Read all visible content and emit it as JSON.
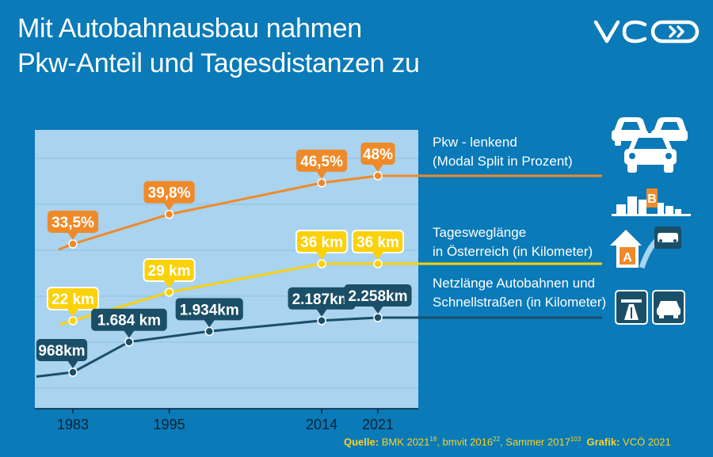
{
  "title": {
    "line1": "Mit Autobahnausbau nahmen",
    "line2": "Pkw-Anteil und Tagesdistanzen zu"
  },
  "logo_text": "VCÖ",
  "colors": {
    "background": "#0a7ab8",
    "plot_bg": "#a9d3ef",
    "pkw": "#ef8a2a",
    "tages": "#fbd10a",
    "netz": "#1b4f68"
  },
  "icons": [
    "cars-icon",
    "city-skyline-icon",
    "route-direction-icon",
    "motorway-sign-icon",
    "car-sign-icon"
  ],
  "chart_data": {
    "type": "line",
    "x_ticks": [
      "1983",
      "1995",
      "2014",
      "2021"
    ],
    "series": [
      {
        "name": "Pkw - lenkend (Modal Split in Prozent)",
        "label_line1": "Pkw - lenkend",
        "label_line2": "(Modal Split in Prozent)",
        "color": "#ef8a2a",
        "points": [
          {
            "x": 1983,
            "y": 33.5,
            "label": "33,5%"
          },
          {
            "x": 1995,
            "y": 39.8,
            "label": "39,8%"
          },
          {
            "x": 2014,
            "y": 46.5,
            "label": "46,5%"
          },
          {
            "x": 2021,
            "y": 48,
            "label": "48%"
          }
        ]
      },
      {
        "name": "Tagesweglänge in Österreich (in Kilometer)",
        "label_line1": "Tagesweglänge",
        "label_line2": "in Österreich (in Kilometer)",
        "color": "#fbd10a",
        "points": [
          {
            "x": 1983,
            "y": 22,
            "label": "22 km"
          },
          {
            "x": 1995,
            "y": 29,
            "label": "29 km"
          },
          {
            "x": 2014,
            "y": 36,
            "label": "36 km"
          },
          {
            "x": 2021,
            "y": 36,
            "label": "36 km"
          }
        ]
      },
      {
        "name": "Netzlänge Autobahnen und Schnellstraßen (in Kilometer)",
        "label_line1": "Netzlänge Autobahnen und",
        "label_line2": "Schnellstraßen (in Kilometer)",
        "color": "#1b4f68",
        "points": [
          {
            "x": 1983,
            "y": 968,
            "label": "968km"
          },
          {
            "x": 1990,
            "y": 1684,
            "label": "1.684 km"
          },
          {
            "x": 2000,
            "y": 1934,
            "label": "1.934km"
          },
          {
            "x": 2014,
            "y": 2187,
            "label": "2.187km"
          },
          {
            "x": 2021,
            "y": 2258,
            "label": "2.258km"
          }
        ]
      }
    ]
  },
  "source": {
    "quelle_label": "Quelle:",
    "quelle_text": " BMK 2021",
    "sup1": "18",
    "text2": ", bmvit 2016",
    "sup2": "22",
    "text3": ", Sammer 2017",
    "sup3": "103",
    "grafik_label": "Grafik:",
    "grafik_text": " VCÖ 2021"
  }
}
